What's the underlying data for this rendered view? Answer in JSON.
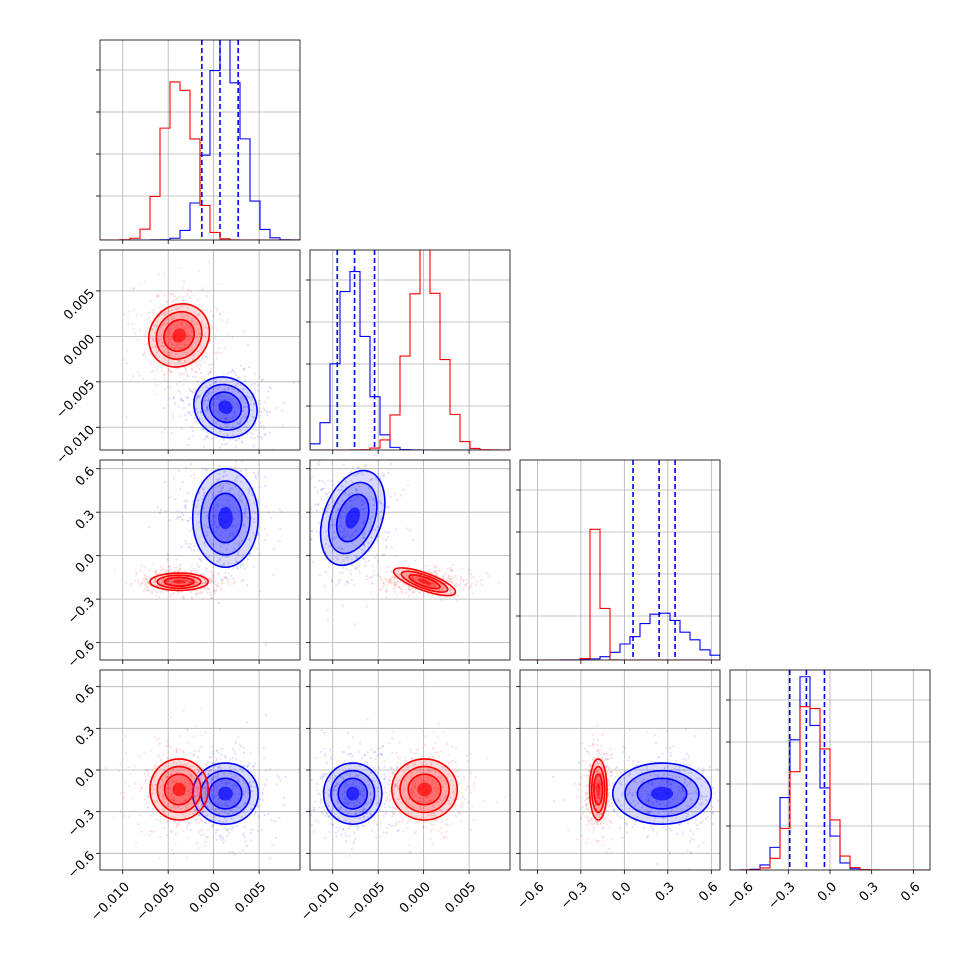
{
  "chart_data": {
    "type": "corner",
    "grid": true,
    "colors": {
      "series_a": "#0000ff",
      "series_b": "#ff0000",
      "grid": "#b0b0b0"
    },
    "parameters": [
      {
        "range": [
          -0.0125,
          0.0095
        ],
        "ticks": [
          -0.01,
          -0.005,
          0.0,
          0.005
        ],
        "tick_labels": [
          "−0.010",
          "−0.005",
          "0.000",
          "0.005"
        ]
      },
      {
        "range": [
          -0.0125,
          0.0095
        ],
        "ticks": [
          -0.01,
          -0.005,
          0.0,
          0.005
        ],
        "tick_labels": [
          "−0.010",
          "−0.005",
          "0.000",
          "0.005"
        ]
      },
      {
        "range": [
          -0.72,
          0.66
        ],
        "ticks": [
          -0.6,
          -0.3,
          0.0,
          0.3,
          0.6
        ],
        "tick_labels": [
          "−0.6",
          "−0.3",
          "0.0",
          "0.3",
          "0.6"
        ]
      },
      {
        "range": [
          -0.72,
          0.72
        ],
        "ticks": [
          -0.6,
          -0.3,
          0.0,
          0.3,
          0.6
        ],
        "tick_labels": [
          "−0.6",
          "−0.3",
          "0.0",
          "0.3",
          "0.6"
        ]
      }
    ],
    "series": [
      {
        "key": "series_a",
        "color": "#0000ff",
        "mean": [
          0.0013,
          -0.0078,
          0.26,
          -0.17
        ],
        "std": [
          0.0018,
          0.0016,
          0.17,
          0.11
        ],
        "quantiles": [
          [
            -0.0013,
            0.0007,
            0.0027
          ],
          [
            -0.0095,
            -0.0076,
            -0.0054
          ],
          [
            0.06,
            0.24,
            0.35
          ],
          [
            -0.29,
            -0.17,
            -0.04
          ]
        ],
        "hist_peak": [
          1.0,
          0.88,
          0.23,
          0.92
        ]
      },
      {
        "key": "series_b",
        "color": "#ff0000",
        "mean": [
          -0.0038,
          0.0001,
          -0.18,
          -0.14
        ],
        "std": [
          0.0016,
          0.0018,
          0.03,
          0.11
        ],
        "hist_peak": [
          0.87,
          0.95,
          0.81,
          0.88
        ]
      }
    ]
  }
}
